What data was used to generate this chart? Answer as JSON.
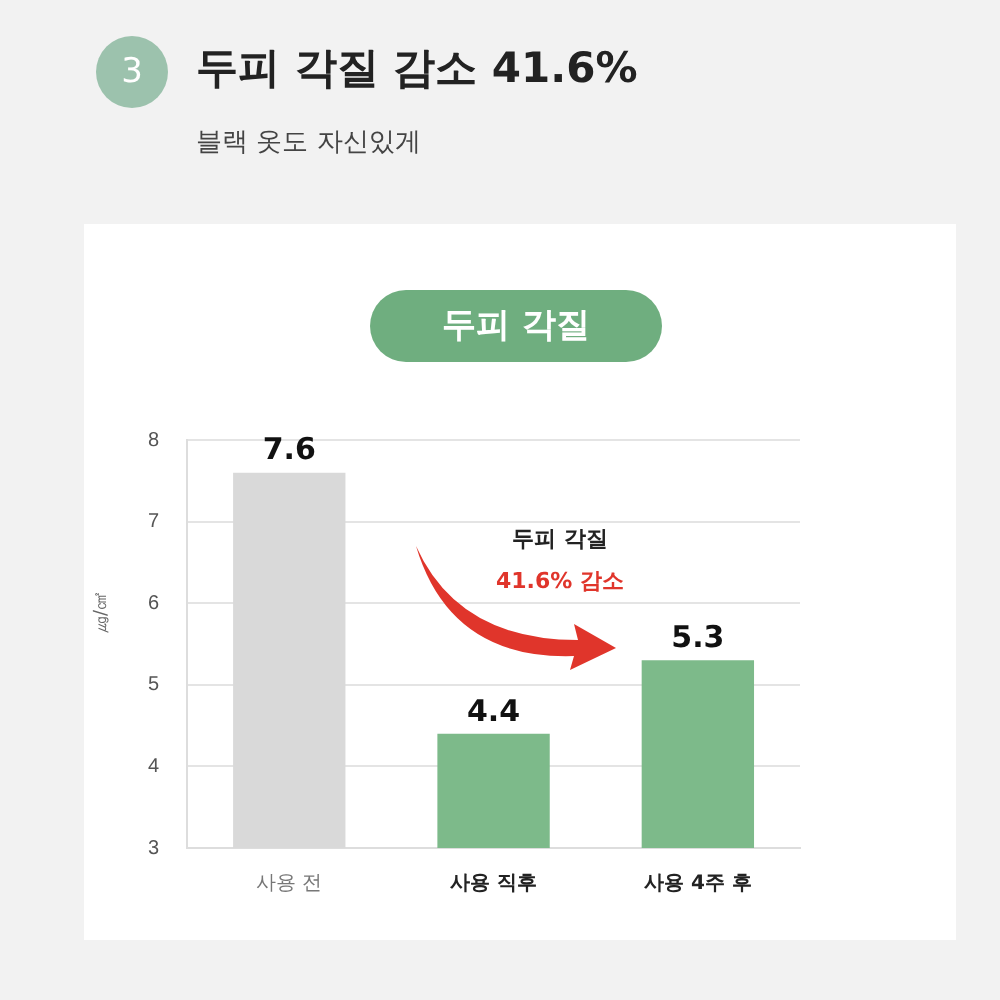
{
  "chart_data": {
    "type": "bar",
    "title": "두피 각질 감소 41.6%",
    "subtitle": "블랙 옷도 자신있게",
    "ylabel": "㎍/㎠",
    "categories": [
      "사용 전",
      "사용 직후",
      "사용 4주 후"
    ],
    "values": [
      7.6,
      4.4,
      5.3
    ],
    "colors": [
      "#d9d9d9",
      "#7dba8a",
      "#7dba8a"
    ],
    "ylim": [
      3,
      8
    ],
    "yticks": [
      3,
      4,
      5,
      6,
      7,
      8
    ],
    "grid": "y",
    "data_labels": true,
    "annotations": [
      "3",
      "두피 각질",
      "두피 각질",
      "41.6% 감소"
    ]
  }
}
